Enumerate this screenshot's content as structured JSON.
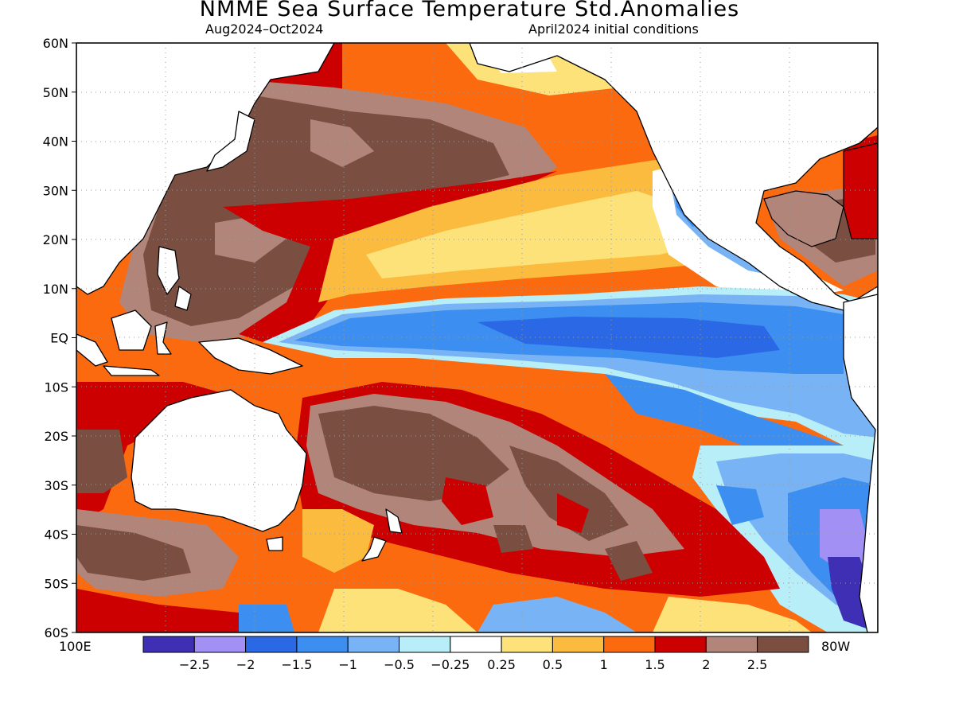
{
  "title": "NMME Sea Surface Temperature Std.Anomalies",
  "subtitle_left": "Aug2024–Oct2024",
  "subtitle_right": "April2024 initial conditions",
  "latitude_labels": [
    "60N",
    "50N",
    "40N",
    "30N",
    "20N",
    "10N",
    "EQ",
    "10S",
    "20S",
    "30S",
    "40S",
    "50S",
    "60S"
  ],
  "longitude_labels": {
    "west": "100E",
    "east": "80W"
  },
  "colorbar": {
    "tick_labels": [
      "−2.5",
      "−2",
      "−1.5",
      "−1",
      "−0.5",
      "−0.25",
      "0.25",
      "0.5",
      "1",
      "1.5",
      "2",
      "2.5"
    ],
    "colors": [
      "#3e2fb5",
      "#a290f5",
      "#2a68e6",
      "#3c8ef0",
      "#78b4f5",
      "#b8eef8",
      "#ffffff",
      "#fde27a",
      "#fbbb3e",
      "#fb6a0e",
      "#cc0000",
      "#b2857b",
      "#7a4f42"
    ]
  },
  "map_data": {
    "field": "sea surface temperature standardized anomaly",
    "region_extent": {
      "lon": [
        "100E",
        "80W"
      ],
      "lat": [
        "60S",
        "60N"
      ]
    },
    "colors": {
      "land": "#ffffff",
      "coast": "#000000",
      "very_warm": "#7a4f42",
      "warm_2_25": "#b2857b",
      "warm_15_2": "#cc0000",
      "warm_1_15": "#fb6a0e",
      "warm_05_1": "#fbbb3e",
      "warm_025_05": "#fde27a",
      "neutral": "#ffffff",
      "cool_025_05": "#b8eef8",
      "cool_05_1": "#78b4f5",
      "cool_1_15": "#3c8ef0",
      "cool_15_2": "#2a68e6",
      "cool_2_25": "#a290f5",
      "cool_25": "#3e2fb5"
    }
  }
}
